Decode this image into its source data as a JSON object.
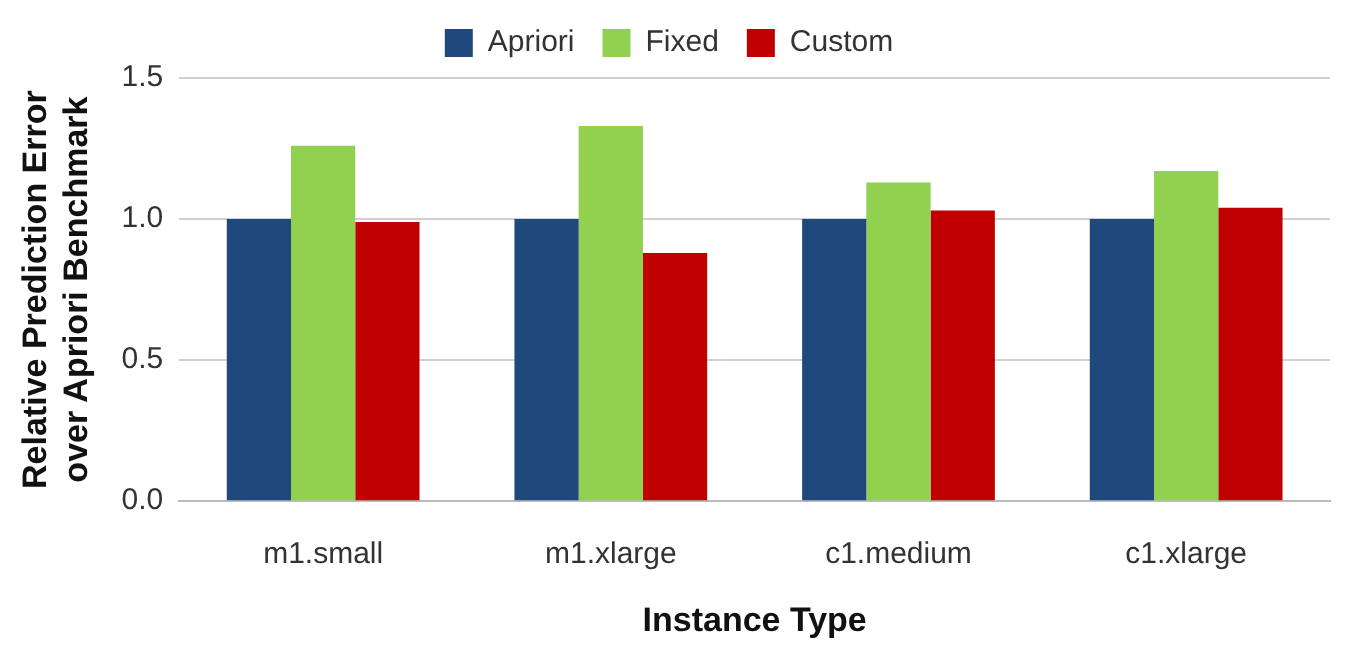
{
  "chart_data": {
    "type": "bar",
    "xlabel": "Instance Type",
    "ylabel": "Relative Prediction Error over Apriori Benchmark",
    "categories": [
      "m1.small",
      "m1.xlarge",
      "c1.medium",
      "c1.xlarge"
    ],
    "series": [
      {
        "name": "Apriori",
        "color": "#1f497d",
        "values": [
          1.0,
          1.0,
          1.0,
          1.0
        ]
      },
      {
        "name": "Fixed",
        "color": "#92d050",
        "values": [
          1.26,
          1.33,
          1.13,
          1.17
        ]
      },
      {
        "name": "Custom",
        "color": "#c00000",
        "values": [
          0.99,
          0.88,
          1.03,
          1.04
        ]
      }
    ],
    "ylim": [
      0,
      1.5
    ],
    "yticks": [
      {
        "value": 0,
        "label": "0.0"
      },
      {
        "value": 0.5,
        "label": "0.5"
      },
      {
        "value": 1,
        "label": "1.0"
      },
      {
        "value": 1.5,
        "label": "1.5"
      }
    ],
    "grid": "y",
    "legend": "top"
  }
}
